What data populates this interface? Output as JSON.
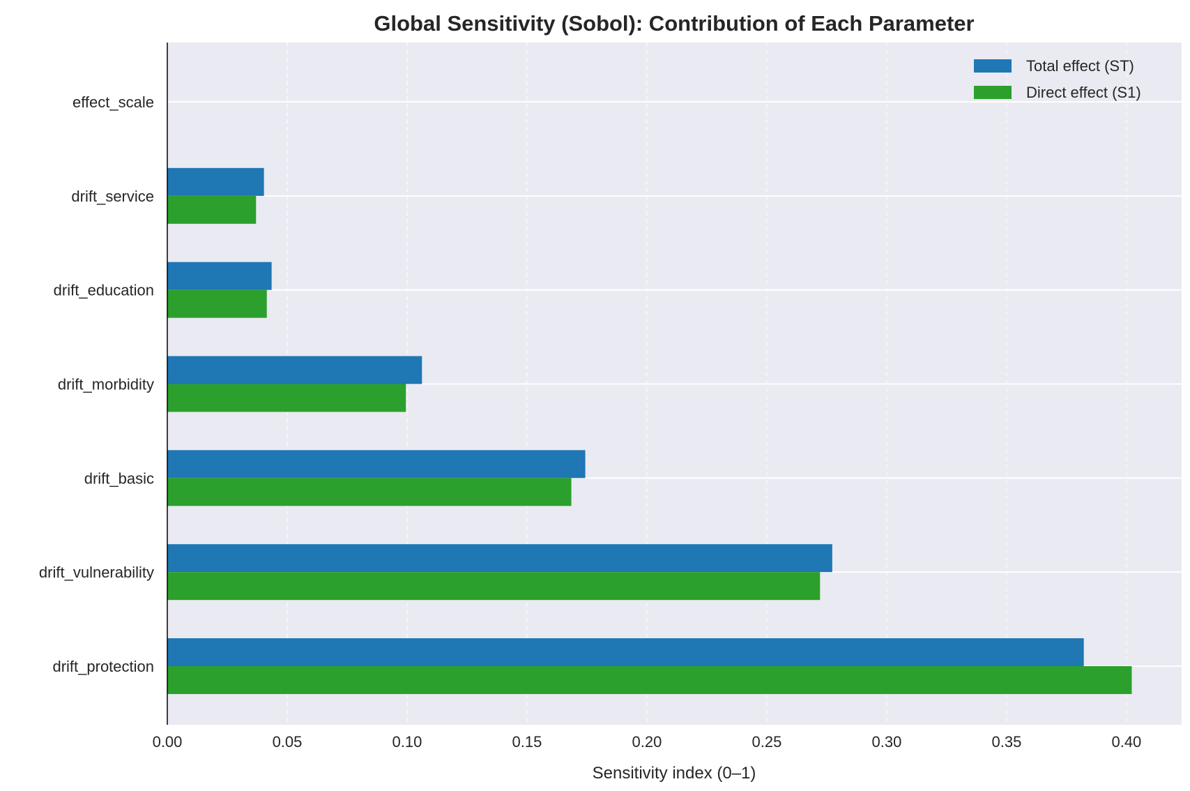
{
  "chart_data": {
    "type": "bar",
    "orientation": "horizontal",
    "title": "Global Sensitivity (Sobol): Contribution of Each Parameter",
    "xlabel": "Sensitivity index (0–1)",
    "ylabel": "",
    "xlim": [
      0,
      0.423
    ],
    "xticks": [
      "0.00",
      "0.05",
      "0.10",
      "0.15",
      "0.20",
      "0.25",
      "0.30",
      "0.35",
      "0.40"
    ],
    "categories": [
      "effect_scale",
      "drift_service",
      "drift_education",
      "drift_morbidity",
      "drift_basic",
      "drift_vulnerability",
      "drift_protection"
    ],
    "series": [
      {
        "name": "Total effect (ST)",
        "color": "#1f77b4",
        "values": [
          0.0,
          0.0403,
          0.0435,
          0.1062,
          0.1743,
          0.2773,
          0.3822
        ]
      },
      {
        "name": "Direct effect (S1)",
        "color": "#2ca02c",
        "values": [
          0.0,
          0.037,
          0.0415,
          0.0995,
          0.1685,
          0.2722,
          0.4022
        ]
      }
    ],
    "grid": true,
    "legend_position": "top-right"
  }
}
